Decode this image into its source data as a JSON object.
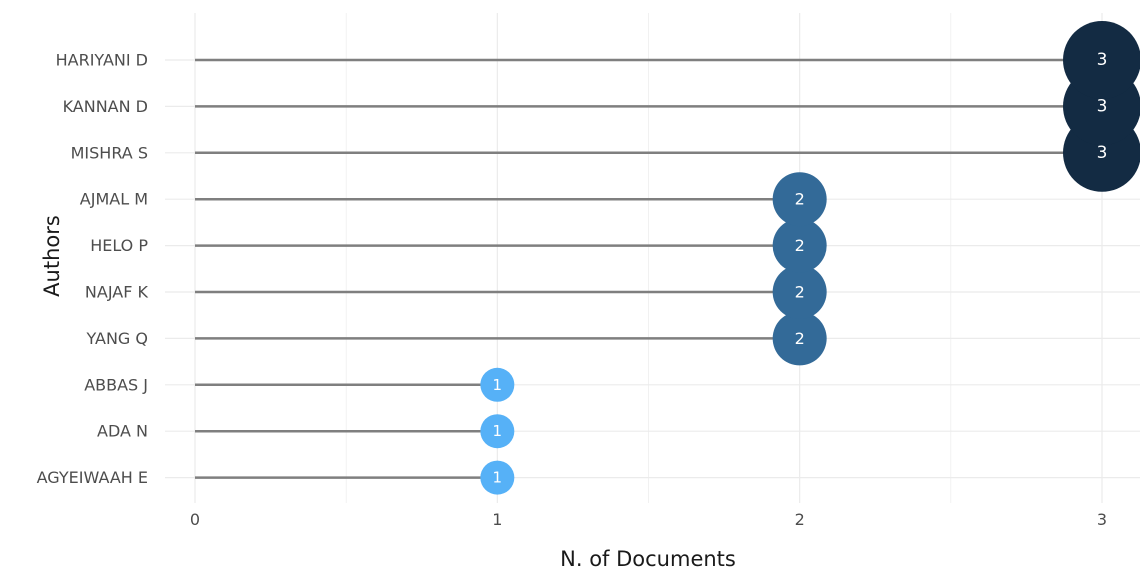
{
  "chart_data": {
    "type": "lollipop",
    "title": "",
    "xlabel": "N. of Documents",
    "ylabel": "Authors",
    "xlim": [
      0,
      3
    ],
    "x_ticks": [
      "0",
      "1",
      "2",
      "3"
    ],
    "grid": true,
    "categories": [
      "HARIYANI D",
      "KANNAN D",
      "MISHRA S",
      "AJMAL M",
      "HELO P",
      "NAJAF K",
      "YANG Q",
      "ABBAS J",
      "ADA N",
      "AGYEIWAAH E"
    ],
    "values": [
      3,
      3,
      3,
      2,
      2,
      2,
      2,
      1,
      1,
      1
    ],
    "value_labels": [
      "3",
      "3",
      "3",
      "2",
      "2",
      "2",
      "2",
      "1",
      "1",
      "1"
    ],
    "colors": {
      "level_3": "#132b43",
      "level_2": "#336a98",
      "level_1": "#56b1f7",
      "stem": "#7f7f7f",
      "grid": "#ebebeb"
    }
  }
}
